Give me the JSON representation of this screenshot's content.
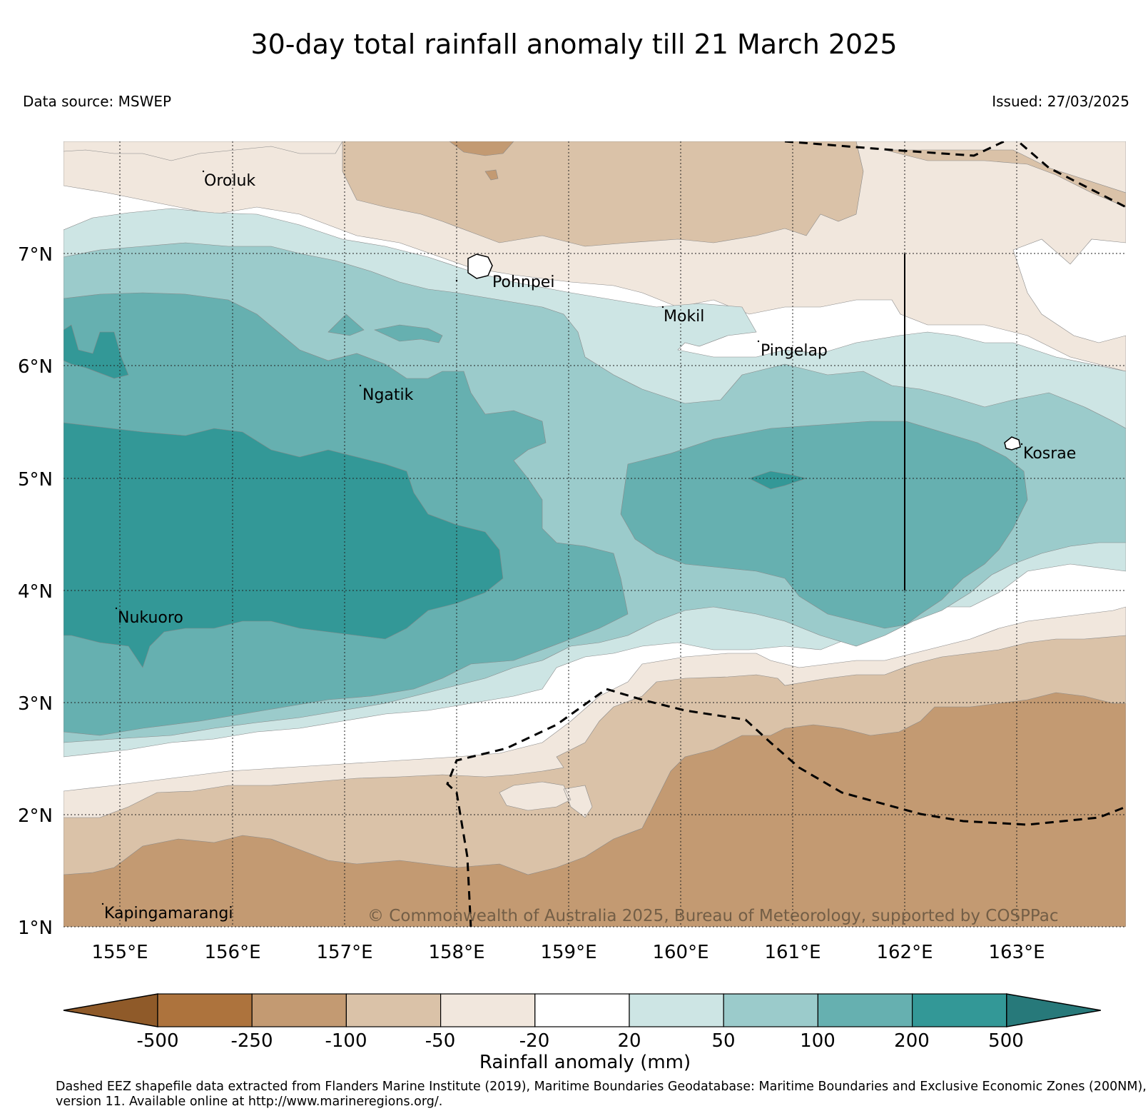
{
  "header": {
    "title": "30-day total rainfall anomaly till 21 March 2025",
    "data_source": "Data source: MSWEP",
    "issued": "Issued: 27/03/2025"
  },
  "map": {
    "lon_range": [
      154.5,
      164.0
    ],
    "lat_range": [
      1.0,
      8.0
    ],
    "lon_ticks": [
      "155°E",
      "156°E",
      "157°E",
      "158°E",
      "159°E",
      "160°E",
      "161°E",
      "162°E",
      "163°E"
    ],
    "lat_ticks": [
      "1°N",
      "2°N",
      "3°N",
      "4°N",
      "5°N",
      "6°N",
      "7°N"
    ],
    "grid": "dotted",
    "places": [
      {
        "name": "Oroluk",
        "lon": 155.75,
        "lat": 7.65
      },
      {
        "name": "Pohnpei",
        "lon": 158.25,
        "lat": 6.85
      },
      {
        "name": "Mokil",
        "lon": 159.8,
        "lat": 6.5
      },
      {
        "name": "Pingelap",
        "lon": 160.7,
        "lat": 6.2
      },
      {
        "name": "Ngatik",
        "lon": 157.15,
        "lat": 5.85
      },
      {
        "name": "Kosrae",
        "lon": 162.95,
        "lat": 5.3
      },
      {
        "name": "Nukuoro",
        "lon": 154.8,
        "lat": 3.85
      },
      {
        "name": "Kapingamarangi",
        "lon": 154.85,
        "lat": 1.15
      }
    ],
    "copyright": "© Commonwealth of Australia 2025, Bureau of Meteorology, supported by COSPPac",
    "eez_boundary": "dashed"
  },
  "colorbar": {
    "label": "Rainfall anomaly (mm)",
    "ticks": [
      "-500",
      "-250",
      "-100",
      "-50",
      "-20",
      "20",
      "50",
      "100",
      "200",
      "500"
    ],
    "colors": [
      "#8f5a29",
      "#ad733d",
      "#c39a72",
      "#dac2a8",
      "#f1e7dd",
      "#ffffff",
      "#cde5e4",
      "#9bcbcb",
      "#66b0b0",
      "#339897",
      "#27797a"
    ]
  },
  "footnote": "Dashed EEZ shapefile data extracted from Flanders Marine Institute (2019), Maritime Boundaries Geodatabase: Maritime Boundaries and Exclusive Economic Zones (200NM), version 11. Available online at http://www.marineregions.org/."
}
